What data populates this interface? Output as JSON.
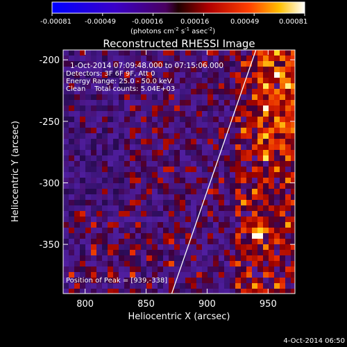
{
  "chart_data": {
    "type": "heatmap",
    "title": "Reconstructed RHESSI Image",
    "xlabel": "Heliocentric X (arcsec)",
    "ylabel": "Heliocentric Y (arcsec)",
    "xlim": [
      782,
      972
    ],
    "ylim": [
      -390,
      -192
    ],
    "xticks": [
      800,
      850,
      900,
      950
    ],
    "yticks": [
      -200,
      -250,
      -300,
      -350
    ],
    "colorbar": {
      "min": -0.00081,
      "max": 0.00081,
      "ticks": [
        "-0.00081",
        "-0.00049",
        "-0.00016",
        "0.00016",
        "0.00049",
        "0.00081"
      ],
      "unit_label": "(photons cm",
      "unit_sup1": "-2",
      "unit_mid": " s",
      "unit_sup2": "-1",
      "unit_mid2": " asec",
      "unit_sup3": "-2",
      "unit_end": ")"
    },
    "info": {
      "time_range": "1-Oct-2014 07:09:48.000 to 07:15:06.000",
      "detectors": "Detectors: 3F 6F 9F, Att 0",
      "energy": "Energy Range: 25.0 - 50.0 keV",
      "clean": "Clean    Total counts: 5.04E+03",
      "peak": "Position of Peak = [939,-338]"
    },
    "limb_line": {
      "x": [
        871,
        940
      ],
      "y": [
        -390,
        -192
      ]
    },
    "peak": {
      "x": 939,
      "y": -338
    },
    "footer_date": "4-Oct-2014 06:50",
    "colors": {
      "background": "#000000",
      "text": "#ffffff"
    }
  }
}
